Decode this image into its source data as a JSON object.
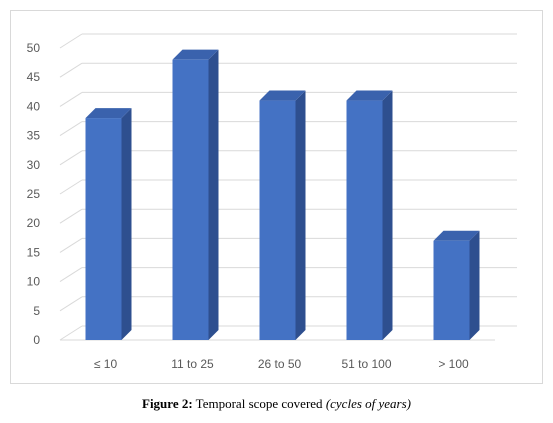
{
  "caption": {
    "label": "Figure 2:",
    "text": " Temporal scope covered ",
    "note": "(cycles of years)"
  },
  "chart_data": {
    "type": "bar",
    "style": "3d-column",
    "categories": [
      "≤ 10",
      "11 to 25",
      "26 to 50",
      "51 to 100",
      "> 100"
    ],
    "values": [
      38,
      48,
      41,
      41,
      17
    ],
    "yticks": [
      0,
      5,
      10,
      15,
      20,
      25,
      30,
      35,
      40,
      45,
      50
    ],
    "ylim": [
      0,
      50
    ],
    "grid": true,
    "legend": "none",
    "title": "",
    "xlabel": "",
    "ylabel": "",
    "colors": {
      "bar_front": "#4472c4",
      "bar_side": "#2e4f8f",
      "bar_top": "#3a62ad",
      "grid": "#d9d9d9",
      "text": "#595959"
    }
  }
}
